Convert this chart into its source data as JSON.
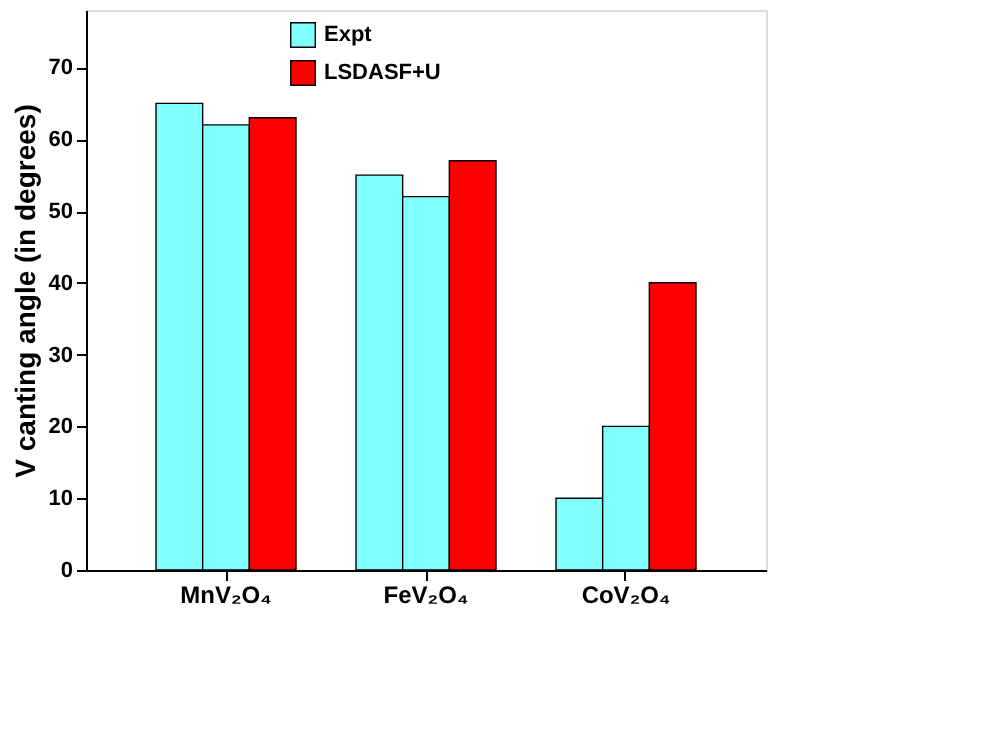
{
  "chart_data": {
    "type": "bar",
    "ylabel": "V canting angle (in degrees)",
    "categories": [
      "MnV₂O₄",
      "FeV₂O₄",
      "CoV₂O₄"
    ],
    "series": [
      {
        "name": "Expt",
        "color": "#80ffff",
        "values": [
          65,
          55,
          10
        ]
      },
      {
        "color": "#80ffff",
        "values": [
          62,
          52,
          20
        ]
      },
      {
        "name": "LSDASF+U",
        "color": "#ff0000",
        "values": [
          63,
          57,
          40
        ]
      }
    ],
    "ylim": [
      0,
      78
    ],
    "yticks": [
      0,
      10,
      20,
      30,
      40,
      50,
      60,
      70
    ],
    "grid": false,
    "legend": "top"
  }
}
